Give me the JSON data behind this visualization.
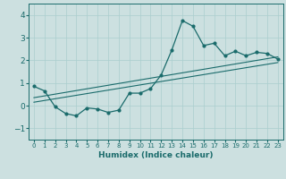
{
  "xlabel": "Humidex (Indice chaleur)",
  "ylabel": "",
  "bg_color": "#cce0e0",
  "line_color": "#1a6b6b",
  "grid_color": "#aacece",
  "xlim": [
    -0.5,
    23.5
  ],
  "ylim": [
    -1.5,
    4.5
  ],
  "xticks": [
    0,
    1,
    2,
    3,
    4,
    5,
    6,
    7,
    8,
    9,
    10,
    11,
    12,
    13,
    14,
    15,
    16,
    17,
    18,
    19,
    20,
    21,
    22,
    23
  ],
  "yticks": [
    -1,
    0,
    1,
    2,
    3,
    4
  ],
  "line1_x": [
    0,
    1,
    2,
    3,
    4,
    5,
    6,
    7,
    8,
    9,
    10,
    11,
    12,
    13,
    14,
    15,
    16,
    17,
    18,
    19,
    20,
    21,
    22,
    23
  ],
  "line1_y": [
    0.85,
    0.65,
    -0.05,
    -0.35,
    -0.45,
    -0.1,
    -0.15,
    -0.3,
    -0.2,
    0.55,
    0.55,
    0.75,
    1.35,
    2.45,
    3.75,
    3.5,
    2.65,
    2.75,
    2.2,
    2.4,
    2.2,
    2.35,
    2.3,
    2.05
  ],
  "line2_x": [
    0,
    23
  ],
  "line2_y": [
    0.35,
    2.15
  ],
  "line3_x": [
    0,
    23
  ],
  "line3_y": [
    0.15,
    1.9
  ]
}
